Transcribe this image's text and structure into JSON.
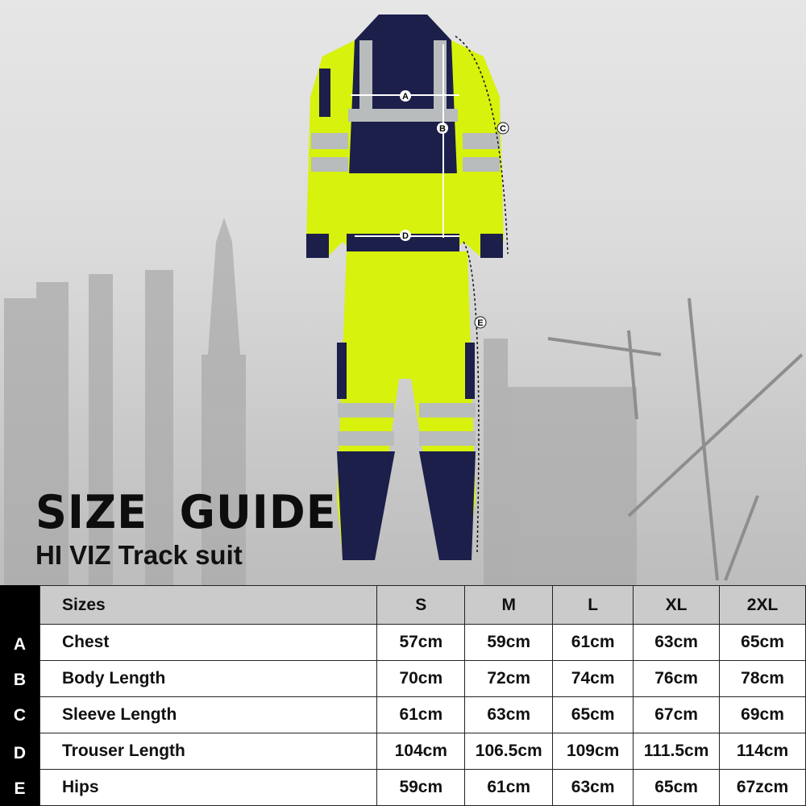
{
  "title": "SIZE  GUIDE",
  "subtitle": "HI VIZ Track suit",
  "markers": [
    "A",
    "B",
    "C",
    "D",
    "E"
  ],
  "colors": {
    "hi_viz": "#d7f20c",
    "navy": "#1c1f4a",
    "reflective": "#b8bcbc"
  },
  "table": {
    "header_label": "Sizes",
    "sizes": [
      "S",
      "M",
      "L",
      "XL",
      "2XL"
    ],
    "rows": [
      {
        "letter": "A",
        "label": "Chest",
        "values": [
          "57cm",
          "59cm",
          "61cm",
          "63cm",
          "65cm"
        ]
      },
      {
        "letter": "B",
        "label": "Body Length",
        "values": [
          "70cm",
          "72cm",
          "74cm",
          "76cm",
          "78cm"
        ]
      },
      {
        "letter": "C",
        "label": "Sleeve Length",
        "values": [
          "61cm",
          "63cm",
          "65cm",
          "67cm",
          "69cm"
        ]
      },
      {
        "letter": "D",
        "label": "Trouser Length",
        "values": [
          "104cm",
          "106.5cm",
          "109cm",
          "111.5cm",
          "114cm"
        ]
      },
      {
        "letter": "E",
        "label": "Hips",
        "values": [
          "59cm",
          "61cm",
          "63cm",
          "65cm",
          "67zcm"
        ]
      }
    ]
  }
}
